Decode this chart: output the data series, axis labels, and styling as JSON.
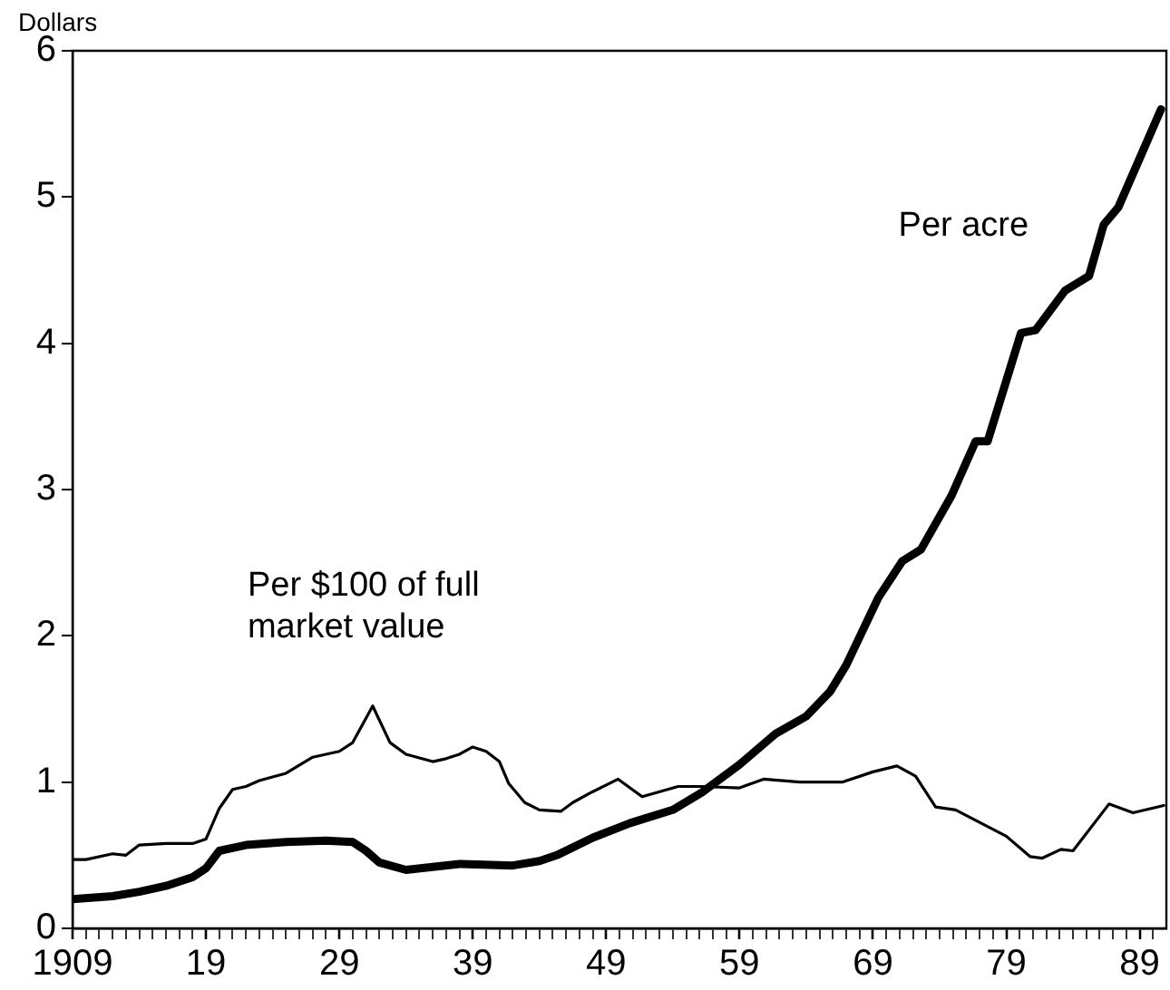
{
  "chart_data": {
    "type": "line",
    "ylabel": "Dollars",
    "xlim": [
      1909,
      1991
    ],
    "ylim": [
      0,
      6
    ],
    "yticks": [
      0,
      1,
      2,
      3,
      4,
      5,
      6
    ],
    "xticks": [
      {
        "value": 1909,
        "label": "1909"
      },
      {
        "value": 1910,
        "label": null
      },
      {
        "value": 1911,
        "label": null
      },
      {
        "value": 1912,
        "label": null
      },
      {
        "value": 1913,
        "label": null
      },
      {
        "value": 1914,
        "label": null
      },
      {
        "value": 1915,
        "label": null
      },
      {
        "value": 1916,
        "label": null
      },
      {
        "value": 1917,
        "label": null
      },
      {
        "value": 1918,
        "label": null
      },
      {
        "value": 1919,
        "label": "19"
      },
      {
        "value": 1920,
        "label": null
      },
      {
        "value": 1921,
        "label": null
      },
      {
        "value": 1922,
        "label": null
      },
      {
        "value": 1923,
        "label": null
      },
      {
        "value": 1924,
        "label": null
      },
      {
        "value": 1925,
        "label": null
      },
      {
        "value": 1926,
        "label": null
      },
      {
        "value": 1927,
        "label": null
      },
      {
        "value": 1928,
        "label": null
      },
      {
        "value": 1929,
        "label": "29"
      },
      {
        "value": 1930,
        "label": null
      },
      {
        "value": 1931,
        "label": null
      },
      {
        "value": 1932,
        "label": null
      },
      {
        "value": 1933,
        "label": null
      },
      {
        "value": 1934,
        "label": null
      },
      {
        "value": 1935,
        "label": null
      },
      {
        "value": 1936,
        "label": null
      },
      {
        "value": 1937,
        "label": null
      },
      {
        "value": 1938,
        "label": null
      },
      {
        "value": 1939,
        "label": "39"
      },
      {
        "value": 1940,
        "label": null
      },
      {
        "value": 1941,
        "label": null
      },
      {
        "value": 1942,
        "label": null
      },
      {
        "value": 1943,
        "label": null
      },
      {
        "value": 1944,
        "label": null
      },
      {
        "value": 1945,
        "label": null
      },
      {
        "value": 1946,
        "label": null
      },
      {
        "value": 1947,
        "label": null
      },
      {
        "value": 1948,
        "label": null
      },
      {
        "value": 1949,
        "label": "49"
      },
      {
        "value": 1950,
        "label": null
      },
      {
        "value": 1951,
        "label": null
      },
      {
        "value": 1952,
        "label": null
      },
      {
        "value": 1953,
        "label": null
      },
      {
        "value": 1954,
        "label": null
      },
      {
        "value": 1955,
        "label": null
      },
      {
        "value": 1956,
        "label": null
      },
      {
        "value": 1957,
        "label": null
      },
      {
        "value": 1958,
        "label": null
      },
      {
        "value": 1959,
        "label": "59"
      },
      {
        "value": 1960,
        "label": null
      },
      {
        "value": 1961,
        "label": null
      },
      {
        "value": 1962,
        "label": null
      },
      {
        "value": 1963,
        "label": null
      },
      {
        "value": 1964,
        "label": null
      },
      {
        "value": 1965,
        "label": null
      },
      {
        "value": 1966,
        "label": null
      },
      {
        "value": 1967,
        "label": null
      },
      {
        "value": 1968,
        "label": null
      },
      {
        "value": 1969,
        "label": "69"
      },
      {
        "value": 1970,
        "label": null
      },
      {
        "value": 1971,
        "label": null
      },
      {
        "value": 1972,
        "label": null
      },
      {
        "value": 1973,
        "label": null
      },
      {
        "value": 1974,
        "label": null
      },
      {
        "value": 1975,
        "label": null
      },
      {
        "value": 1976,
        "label": null
      },
      {
        "value": 1977,
        "label": null
      },
      {
        "value": 1978,
        "label": null
      },
      {
        "value": 1979,
        "label": "79"
      },
      {
        "value": 1980,
        "label": null
      },
      {
        "value": 1981,
        "label": null
      },
      {
        "value": 1982,
        "label": null
      },
      {
        "value": 1983,
        "label": null
      },
      {
        "value": 1984,
        "label": null
      },
      {
        "value": 1985,
        "label": null
      },
      {
        "value": 1986,
        "label": null
      },
      {
        "value": 1987,
        "label": null
      },
      {
        "value": 1988,
        "label": null
      },
      {
        "value": 1989,
        "label": "89"
      },
      {
        "value": 1990,
        "label": null
      }
    ],
    "grid": false,
    "legend": false,
    "marker": "none",
    "line_style": "solid",
    "series": [
      {
        "name": "Per acre",
        "color": "#000000",
        "x": [
          1909,
          1912,
          1914,
          1916,
          1918,
          1919,
          1920,
          1922,
          1925,
          1928,
          1930,
          1931,
          1932,
          1934,
          1936,
          1938,
          1942,
          1944,
          1945.3,
          1948,
          1950.8,
          1954,
          1956.2,
          1959,
          1961.7,
          1964,
          1965.8,
          1967,
          1969.4,
          1971.2,
          1972.6,
          1974.9,
          1976.7,
          1977.6,
          1980.1,
          1981.2,
          1983.4,
          1985.2,
          1986.3,
          1987.4,
          1990.6
        ],
        "values": [
          0.2,
          0.22,
          0.25,
          0.29,
          0.35,
          0.41,
          0.53,
          0.57,
          0.59,
          0.6,
          0.59,
          0.53,
          0.45,
          0.4,
          0.42,
          0.44,
          0.43,
          0.46,
          0.5,
          0.62,
          0.72,
          0.81,
          0.93,
          1.12,
          1.33,
          1.45,
          1.62,
          1.8,
          2.26,
          2.51,
          2.59,
          2.96,
          3.33,
          3.33,
          4.07,
          4.09,
          4.36,
          4.46,
          4.81,
          4.93,
          5.6
        ]
      },
      {
        "name": "Per $100 of full market value",
        "color": "#000000",
        "x": [
          1909,
          1910,
          1912,
          1913,
          1914,
          1916,
          1918,
          1919,
          1920,
          1921,
          1922,
          1923,
          1925,
          1927,
          1929,
          1930,
          1931.5,
          1932.8,
          1934,
          1936,
          1937,
          1938,
          1939,
          1940,
          1941,
          1941.7,
          1942.9,
          1944,
          1945.6,
          1946.5,
          1947.9,
          1949.9,
          1951.7,
          1954.4,
          1956.2,
          1959,
          1960.8,
          1963.5,
          1966.7,
          1969,
          1970.8,
          1972.2,
          1973.7,
          1975.2,
          1979,
          1980.8,
          1981.7,
          1983.1,
          1984,
          1986.7,
          1988.5,
          1990.8
        ],
        "values": [
          0.47,
          0.47,
          0.51,
          0.5,
          0.57,
          0.58,
          0.58,
          0.61,
          0.82,
          0.95,
          0.97,
          1.01,
          1.06,
          1.17,
          1.21,
          1.27,
          1.52,
          1.27,
          1.19,
          1.14,
          1.16,
          1.19,
          1.24,
          1.21,
          1.14,
          0.99,
          0.86,
          0.81,
          0.8,
          0.86,
          0.93,
          1.02,
          0.9,
          0.97,
          0.97,
          0.96,
          1.02,
          1.0,
          1.0,
          1.07,
          1.11,
          1.04,
          0.83,
          0.81,
          0.63,
          0.49,
          0.48,
          0.54,
          0.53,
          0.85,
          0.79,
          0.84
        ]
      }
    ]
  }
}
